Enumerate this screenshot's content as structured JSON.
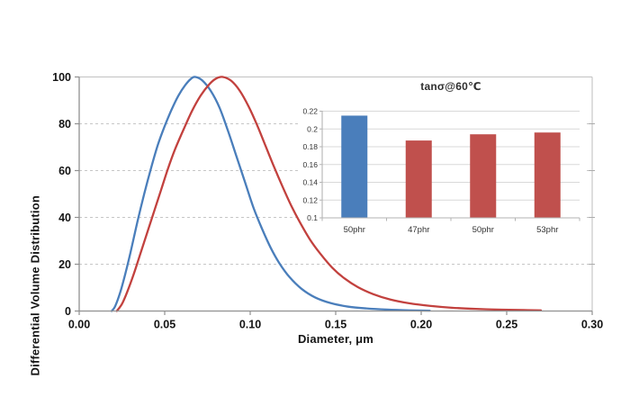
{
  "figure": {
    "background": "#ffffff",
    "grid_color": "#c6c6c6",
    "axis_color": "#909090",
    "inset_axis_color": "#b3b3b3",
    "inset_grid_color": "#d9d9d9"
  },
  "chart_data": [
    {
      "type": "line",
      "title": "",
      "xlabel": "Diameter, μm",
      "ylabel": "Differential Volume Distribution",
      "xlim": [
        0,
        0.3
      ],
      "ylim": [
        0,
        100
      ],
      "grid": "horizontal dashed, solid top line at 100, right border",
      "legend_position": "none",
      "x_ticks": {
        "values": [
          0,
          0.05,
          0.1,
          0.15,
          0.2,
          0.25,
          0.3
        ],
        "labels": [
          "0.00",
          "0.05",
          "0.10",
          "0.15",
          "0.20",
          "0.25",
          "0.30"
        ]
      },
      "y_ticks": {
        "values": [
          0,
          20,
          40,
          60,
          80,
          100
        ],
        "labels": [
          "0",
          "20",
          "40",
          "60",
          "80",
          "100"
        ]
      },
      "series": [
        {
          "name": "blue-distribution-curve",
          "color": "#4a7ebb",
          "peak_x": 0.067,
          "points": [
            [
              0.019,
              0
            ],
            [
              0.021,
              2
            ],
            [
              0.024,
              8
            ],
            [
              0.027,
              16
            ],
            [
              0.03,
              25
            ],
            [
              0.034,
              38
            ],
            [
              0.038,
              50
            ],
            [
              0.042,
              61
            ],
            [
              0.046,
              71
            ],
            [
              0.05,
              79
            ],
            [
              0.054,
              86
            ],
            [
              0.058,
              92
            ],
            [
              0.062,
              96.5
            ],
            [
              0.0655,
              99.3
            ],
            [
              0.068,
              100
            ],
            [
              0.072,
              98.5
            ],
            [
              0.077,
              94
            ],
            [
              0.082,
              87
            ],
            [
              0.087,
              77
            ],
            [
              0.092,
              66
            ],
            [
              0.097,
              55
            ],
            [
              0.102,
              44
            ],
            [
              0.107,
              35
            ],
            [
              0.112,
              27
            ],
            [
              0.117,
              20.5
            ],
            [
              0.123,
              14.5
            ],
            [
              0.13,
              9.5
            ],
            [
              0.138,
              5.8
            ],
            [
              0.147,
              3.4
            ],
            [
              0.157,
              1.9
            ],
            [
              0.168,
              1.1
            ],
            [
              0.18,
              0.6
            ],
            [
              0.193,
              0.3
            ],
            [
              0.205,
              0.15
            ]
          ]
        },
        {
          "name": "red-distribution-curve",
          "color": "#c2413e",
          "peak_x": 0.083,
          "points": [
            [
              0.022,
              0
            ],
            [
              0.025,
              3
            ],
            [
              0.028,
              8
            ],
            [
              0.032,
              16
            ],
            [
              0.036,
              25
            ],
            [
              0.04,
              34
            ],
            [
              0.044,
              43
            ],
            [
              0.048,
              52
            ],
            [
              0.052,
              61
            ],
            [
              0.056,
              69
            ],
            [
              0.061,
              77.5
            ],
            [
              0.066,
              85.5
            ],
            [
              0.071,
              92
            ],
            [
              0.076,
              96.8
            ],
            [
              0.08,
              99.3
            ],
            [
              0.084,
              100
            ],
            [
              0.089,
              98.3
            ],
            [
              0.094,
              94
            ],
            [
              0.099,
              87.5
            ],
            [
              0.104,
              79.5
            ],
            [
              0.109,
              70.5
            ],
            [
              0.114,
              61.5
            ],
            [
              0.119,
              53
            ],
            [
              0.124,
              45
            ],
            [
              0.129,
              38
            ],
            [
              0.135,
              30.5
            ],
            [
              0.141,
              24.5
            ],
            [
              0.148,
              18.5
            ],
            [
              0.155,
              14
            ],
            [
              0.163,
              10.2
            ],
            [
              0.172,
              7.2
            ],
            [
              0.182,
              4.9
            ],
            [
              0.193,
              3.3
            ],
            [
              0.205,
              2.2
            ],
            [
              0.218,
              1.4
            ],
            [
              0.232,
              0.9
            ],
            [
              0.247,
              0.55
            ],
            [
              0.26,
              0.4
            ],
            [
              0.27,
              0.3
            ]
          ]
        }
      ]
    },
    {
      "type": "bar",
      "title": "tanσ@60℃",
      "categories": [
        "50phr",
        "47phr",
        "50phr",
        "53phr"
      ],
      "values": [
        0.215,
        0.187,
        0.194,
        0.196
      ],
      "bar_colors": [
        "#4a7ebb",
        "#c0504d",
        "#c0504d",
        "#c0504d"
      ],
      "ylim": [
        0.1,
        0.22
      ],
      "grid": "horizontal solid",
      "legend_position": "none",
      "y_ticks": {
        "values": [
          0.1,
          0.12,
          0.14,
          0.16,
          0.18,
          0.2,
          0.22
        ],
        "labels": [
          "0.1",
          "0.12",
          "0.14",
          "0.16",
          "0.18",
          "0.2",
          "0.22"
        ]
      }
    }
  ]
}
